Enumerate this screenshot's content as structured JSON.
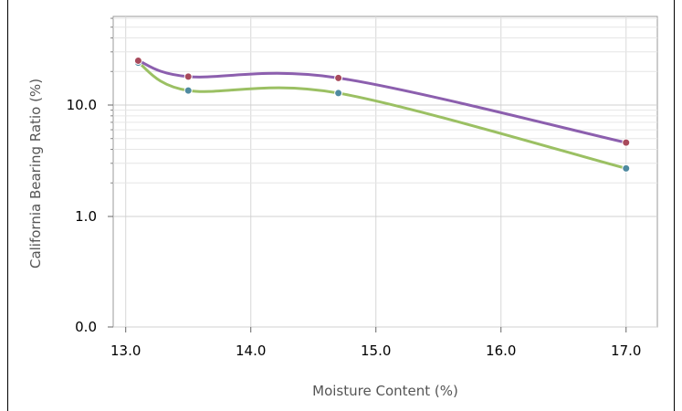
{
  "chart_data": {
    "type": "line",
    "xlabel": "Moisture Content (%)",
    "ylabel": "California Bearing Ratio (%)",
    "xlim": [
      12.9,
      17.25
    ],
    "x_ticks": [
      "13.0",
      "14.0",
      "15.0",
      "16.0",
      "17.0"
    ],
    "x_tick_values": [
      13.0,
      14.0,
      15.0,
      16.0,
      17.0
    ],
    "y_ticks": [
      "0.0",
      "1.0",
      "10.0"
    ],
    "y_scale": "log",
    "grid": true,
    "series": [
      {
        "color": "#8c5fae",
        "marker_color": "#a84a5c",
        "x": [
          13.1,
          13.5,
          14.7,
          17.0
        ],
        "y": [
          25.0,
          18.0,
          17.5,
          4.6
        ]
      },
      {
        "color": "#9bc063",
        "marker_color": "#4f8aa0",
        "x": [
          13.1,
          13.5,
          14.7,
          17.0
        ],
        "y": [
          24.0,
          13.5,
          12.8,
          2.7
        ]
      }
    ]
  }
}
